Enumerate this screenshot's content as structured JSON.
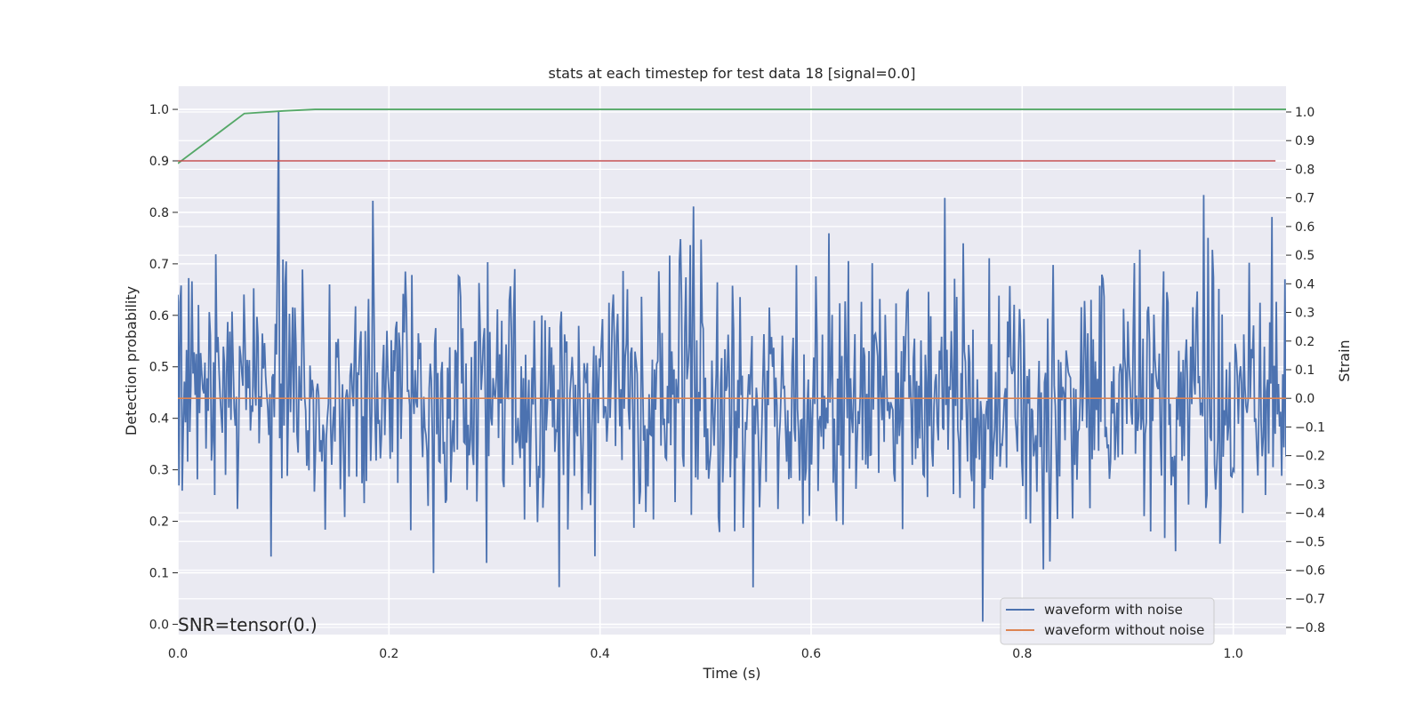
{
  "chart_data": {
    "type": "line",
    "title": "stats at each timestep for test data 18 [signal=0.0]",
    "xlabel": "Time (s)",
    "ylabel_left": "Detection probability",
    "ylabel_right": "Strain",
    "xlim": [
      0.0,
      1.05
    ],
    "ylim_left": [
      -0.02,
      1.045
    ],
    "ylim_right": [
      -0.825,
      1.09
    ],
    "x_ticks": [
      "0.0",
      "0.2",
      "0.4",
      "0.6",
      "0.8",
      "1.0"
    ],
    "x_tick_values": [
      0.0,
      0.2,
      0.4,
      0.6,
      0.8,
      1.0
    ],
    "y_left_ticks": [
      "0.0",
      "0.1",
      "0.2",
      "0.3",
      "0.4",
      "0.5",
      "0.6",
      "0.7",
      "0.8",
      "0.9",
      "1.0"
    ],
    "y_left_tick_values": [
      0.0,
      0.1,
      0.2,
      0.3,
      0.4,
      0.5,
      0.6,
      0.7,
      0.8,
      0.9,
      1.0
    ],
    "y_right_ticks": [
      "−0.8",
      "−0.7",
      "−0.6",
      "−0.5",
      "−0.4",
      "−0.3",
      "−0.2",
      "−0.1",
      "0.0",
      "0.1",
      "0.2",
      "0.3",
      "0.4",
      "0.5",
      "0.6",
      "0.7",
      "0.8",
      "0.9",
      "1.0"
    ],
    "y_right_tick_values": [
      -0.8,
      -0.7,
      -0.6,
      -0.5,
      -0.4,
      -0.3,
      -0.2,
      -0.1,
      0.0,
      0.1,
      0.2,
      0.3,
      0.4,
      0.5,
      0.6,
      0.7,
      0.8,
      0.9,
      1.0
    ],
    "grid": true,
    "legend_position": "bottom-right",
    "annotation": "SNR=tensor(0.)",
    "series": [
      {
        "name": "waveform with noise",
        "axis": "right",
        "color": "#4c72b0",
        "x_start": 0.0,
        "x_end": 1.05,
        "n_points": 1024,
        "noise_std": 0.22,
        "notable_points": [
          {
            "x": 0.095,
            "y": 1.0
          },
          {
            "x": 0.972,
            "y": 0.71
          },
          {
            "x": 0.185,
            "y": 0.69
          },
          {
            "x": 0.489,
            "y": 0.67
          },
          {
            "x": 0.763,
            "y": -0.78
          },
          {
            "x": 0.242,
            "y": -0.61
          },
          {
            "x": 0.545,
            "y": -0.66
          }
        ]
      },
      {
        "name": "waveform without noise",
        "axis": "right",
        "color": "#dd8452",
        "x": [
          0.0,
          1.05
        ],
        "y": [
          0.0,
          0.0
        ]
      },
      {
        "axis": "left",
        "color": "#55a868",
        "x": [
          0.0,
          0.063,
          0.1,
          0.13,
          1.05
        ],
        "y": [
          0.895,
          0.992,
          0.997,
          1.0,
          1.0
        ]
      },
      {
        "axis": "left",
        "color": "#c44e52",
        "x": [
          0.0,
          1.04
        ],
        "y": [
          0.9,
          0.9
        ]
      }
    ]
  }
}
